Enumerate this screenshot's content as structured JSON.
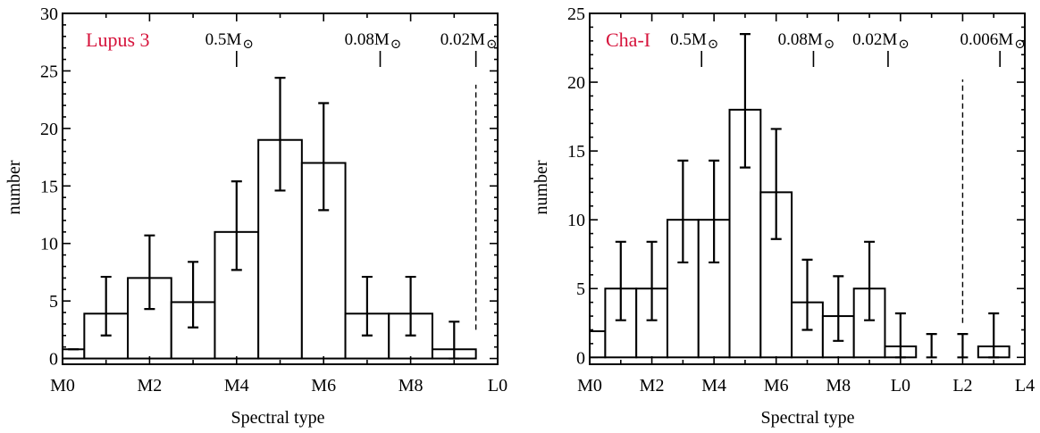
{
  "chart_data": [
    {
      "type": "bar",
      "title": "Lupus 3",
      "title_color": "#d6143c",
      "xlabel": "Spectral type",
      "ylabel": "number",
      "xlim": [
        0,
        10
      ],
      "ylim": [
        -0.5,
        30
      ],
      "xtick_values": [
        0,
        2,
        4,
        6,
        8,
        10
      ],
      "xtick_labels": [
        "M0",
        "M2",
        "M4",
        "M6",
        "M8",
        "L0"
      ],
      "ytick_values": [
        0,
        5,
        10,
        15,
        20,
        25,
        30
      ],
      "ytick_labels": [
        "0",
        "5",
        "10",
        "15",
        "20",
        "25",
        "30"
      ],
      "bins": [
        {
          "x0": 0,
          "x1": 0.5,
          "value": 0.8,
          "err_low": 0.8,
          "err_high": 0.8
        },
        {
          "x0": 0.5,
          "x1": 1.5,
          "value": 3.9,
          "err_low": 2.0,
          "err_high": 7.1
        },
        {
          "x0": 1.5,
          "x1": 2.5,
          "value": 7.0,
          "err_low": 4.3,
          "err_high": 10.7
        },
        {
          "x0": 2.5,
          "x1": 3.5,
          "value": 4.9,
          "err_low": 2.7,
          "err_high": 8.4
        },
        {
          "x0": 3.5,
          "x1": 4.5,
          "value": 11.0,
          "err_low": 7.7,
          "err_high": 15.4
        },
        {
          "x0": 4.5,
          "x1": 5.5,
          "value": 19.0,
          "err_low": 14.6,
          "err_high": 24.4
        },
        {
          "x0": 5.5,
          "x1": 6.5,
          "value": 17.0,
          "err_low": 12.9,
          "err_high": 22.2
        },
        {
          "x0": 6.5,
          "x1": 7.5,
          "value": 3.9,
          "err_low": 2.0,
          "err_high": 7.1
        },
        {
          "x0": 7.5,
          "x1": 8.5,
          "value": 3.9,
          "err_low": 2.0,
          "err_high": 7.1
        },
        {
          "x0": 8.5,
          "x1": 9.5,
          "value": 0.8,
          "err_low": 0.0,
          "err_high": 3.2
        }
      ],
      "mass_markers": [
        {
          "x": 4.0,
          "label": "0.5M"
        },
        {
          "x": 7.3,
          "label": "0.08M"
        },
        {
          "x": 9.5,
          "label": "0.02M"
        }
      ],
      "completeness_limit_x": 9.5,
      "completeness_limit_yrange": [
        2.5,
        23.8
      ]
    },
    {
      "type": "bar",
      "title": "Cha-I",
      "title_color": "#d6143c",
      "xlabel": "Spectral type",
      "ylabel": "number",
      "xlim": [
        0,
        14
      ],
      "ylim": [
        -0.5,
        25
      ],
      "xtick_values": [
        0,
        2,
        4,
        6,
        8,
        10,
        12,
        14
      ],
      "xtick_labels": [
        "M0",
        "M2",
        "M4",
        "M6",
        "M8",
        "L0",
        "L2",
        "L4"
      ],
      "ytick_values": [
        0,
        5,
        10,
        15,
        20,
        25
      ],
      "ytick_labels": [
        "0",
        "5",
        "10",
        "15",
        "20",
        "25"
      ],
      "bins": [
        {
          "x0": 0,
          "x1": 0.5,
          "value": 1.9,
          "err_low": null,
          "err_high": null
        },
        {
          "x0": 0.5,
          "x1": 1.5,
          "value": 5.0,
          "err_low": 2.7,
          "err_high": 8.4
        },
        {
          "x0": 1.5,
          "x1": 2.5,
          "value": 5.0,
          "err_low": 2.7,
          "err_high": 8.4
        },
        {
          "x0": 2.5,
          "x1": 3.5,
          "value": 10.0,
          "err_low": 6.9,
          "err_high": 14.3
        },
        {
          "x0": 3.5,
          "x1": 4.5,
          "value": 10.0,
          "err_low": 6.9,
          "err_high": 14.3
        },
        {
          "x0": 4.5,
          "x1": 5.5,
          "value": 18.0,
          "err_low": 13.8,
          "err_high": 23.5
        },
        {
          "x0": 5.5,
          "x1": 6.5,
          "value": 12.0,
          "err_low": 8.6,
          "err_high": 16.6
        },
        {
          "x0": 6.5,
          "x1": 7.5,
          "value": 4.0,
          "err_low": 2.0,
          "err_high": 7.1
        },
        {
          "x0": 7.5,
          "x1": 8.5,
          "value": 3.0,
          "err_low": 1.2,
          "err_high": 5.9
        },
        {
          "x0": 8.5,
          "x1": 9.5,
          "value": 5.0,
          "err_low": 2.7,
          "err_high": 8.4
        },
        {
          "x0": 9.5,
          "x1": 10.5,
          "value": 0.8,
          "err_low": 0.0,
          "err_high": 3.2
        },
        {
          "x0": 10.5,
          "x1": 11.5,
          "value": 0.0,
          "err_low": 0.0,
          "err_high": 1.7
        },
        {
          "x0": 11.5,
          "x1": 12.5,
          "value": 0.0,
          "err_low": 0.0,
          "err_high": 1.7
        },
        {
          "x0": 12.5,
          "x1": 13.5,
          "value": 0.8,
          "err_low": 0.0,
          "err_high": 3.2
        }
      ],
      "mass_markers": [
        {
          "x": 3.6,
          "label": "0.5M"
        },
        {
          "x": 7.2,
          "label": "0.08M"
        },
        {
          "x": 9.6,
          "label": "0.02M"
        },
        {
          "x": 13.2,
          "label": "0.006M"
        }
      ],
      "completeness_limit_x": 12.0,
      "completeness_limit_yrange": [
        2.5,
        20.2
      ]
    }
  ]
}
